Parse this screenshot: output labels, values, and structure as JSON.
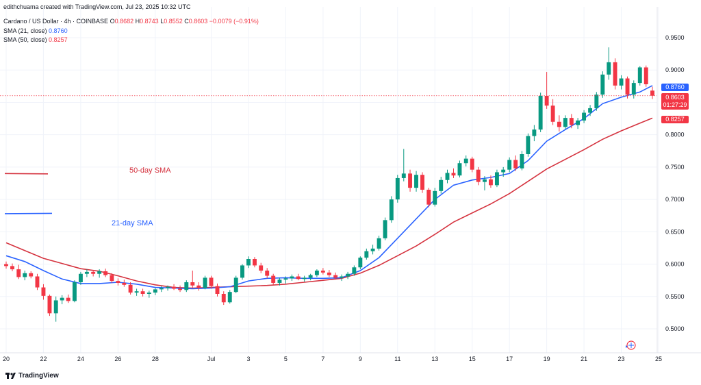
{
  "header": {
    "credit": "edithchuama created with TradingView.com, Jul 23, 2025 10:32 UTC",
    "symbol": "Cardano / US Dollar · 4h · COINBASE",
    "o_label": "O",
    "o": "0.8682",
    "h_label": "H",
    "h": "0.8743",
    "l_label": "L",
    "l": "0.8552",
    "c_label": "C",
    "c": "0.8603",
    "change": "−0.0079 (−0.91%)",
    "sma21_label": "SMA (21, close)",
    "sma21_value": "0.8760",
    "sma50_label": "SMA (50, close)",
    "sma50_value": "0.8257"
  },
  "badges": {
    "sma21": "0.8760",
    "price": "0.8603",
    "countdown": "01:27:29",
    "sma50": "0.8257"
  },
  "annotations": {
    "sma50_legend": "50-day SMA",
    "sma21_legend": "21-day SMA"
  },
  "footer": {
    "brand": "TradingView"
  },
  "colors": {
    "up": "#089981",
    "down": "#f23645",
    "sma21": "#2962ff",
    "sma50": "#d5333f",
    "grid": "#f0f3fa"
  },
  "chart_data": {
    "type": "candlestick",
    "title": "Cardano / US Dollar · 4h · COINBASE",
    "ylim": [
      0.47,
      0.97
    ],
    "y_ticks": [
      "0.9500",
      "0.9000",
      "0.8500",
      "0.8000",
      "0.7500",
      "0.7000",
      "0.6500",
      "0.6000",
      "0.5500",
      "0.5000"
    ],
    "x_ticks": [
      "20",
      "22",
      "24",
      "26",
      "28",
      "Jul",
      "3",
      "5",
      "7",
      "9",
      "11",
      "13",
      "15",
      "17",
      "19",
      "21",
      "23",
      "25"
    ],
    "x_tick_days": [
      0,
      2,
      4,
      6,
      8,
      11,
      13,
      15,
      17,
      19,
      21,
      23,
      25,
      27,
      29,
      31,
      33,
      35
    ],
    "last_price": 0.8603,
    "sma21_last": 0.876,
    "sma50_last": 0.8257,
    "candles": [
      {
        "d": 0.0,
        "o": 0.6,
        "h": 0.604,
        "l": 0.593,
        "c": 0.597
      },
      {
        "d": 0.33,
        "o": 0.597,
        "h": 0.601,
        "l": 0.589,
        "c": 0.592
      },
      {
        "d": 0.67,
        "o": 0.592,
        "h": 0.599,
        "l": 0.577,
        "c": 0.58
      },
      {
        "d": 1.0,
        "o": 0.58,
        "h": 0.59,
        "l": 0.575,
        "c": 0.586
      },
      {
        "d": 1.33,
        "o": 0.586,
        "h": 0.589,
        "l": 0.578,
        "c": 0.581
      },
      {
        "d": 1.67,
        "o": 0.581,
        "h": 0.585,
        "l": 0.56,
        "c": 0.564
      },
      {
        "d": 2.0,
        "o": 0.564,
        "h": 0.569,
        "l": 0.545,
        "c": 0.551
      },
      {
        "d": 2.33,
        "o": 0.551,
        "h": 0.553,
        "l": 0.52,
        "c": 0.524
      },
      {
        "d": 2.67,
        "o": 0.524,
        "h": 0.55,
        "l": 0.511,
        "c": 0.544
      },
      {
        "d": 3.0,
        "o": 0.544,
        "h": 0.552,
        "l": 0.538,
        "c": 0.548
      },
      {
        "d": 3.33,
        "o": 0.548,
        "h": 0.553,
        "l": 0.54,
        "c": 0.543
      },
      {
        "d": 3.67,
        "o": 0.543,
        "h": 0.575,
        "l": 0.541,
        "c": 0.572
      },
      {
        "d": 4.0,
        "o": 0.572,
        "h": 0.588,
        "l": 0.568,
        "c": 0.585
      },
      {
        "d": 4.33,
        "o": 0.585,
        "h": 0.592,
        "l": 0.58,
        "c": 0.588
      },
      {
        "d": 4.67,
        "o": 0.588,
        "h": 0.591,
        "l": 0.581,
        "c": 0.585
      },
      {
        "d": 5.0,
        "o": 0.585,
        "h": 0.592,
        "l": 0.579,
        "c": 0.589
      },
      {
        "d": 5.33,
        "o": 0.589,
        "h": 0.593,
        "l": 0.58,
        "c": 0.583
      },
      {
        "d": 5.67,
        "o": 0.583,
        "h": 0.586,
        "l": 0.571,
        "c": 0.574
      },
      {
        "d": 6.0,
        "o": 0.574,
        "h": 0.578,
        "l": 0.567,
        "c": 0.571
      },
      {
        "d": 6.33,
        "o": 0.571,
        "h": 0.576,
        "l": 0.565,
        "c": 0.568
      },
      {
        "d": 6.67,
        "o": 0.568,
        "h": 0.572,
        "l": 0.553,
        "c": 0.556
      },
      {
        "d": 7.0,
        "o": 0.556,
        "h": 0.562,
        "l": 0.551,
        "c": 0.558
      },
      {
        "d": 7.33,
        "o": 0.558,
        "h": 0.562,
        "l": 0.55,
        "c": 0.554
      },
      {
        "d": 7.67,
        "o": 0.554,
        "h": 0.559,
        "l": 0.548,
        "c": 0.556
      },
      {
        "d": 8.0,
        "o": 0.556,
        "h": 0.563,
        "l": 0.552,
        "c": 0.561
      },
      {
        "d": 8.33,
        "o": 0.561,
        "h": 0.566,
        "l": 0.557,
        "c": 0.563
      },
      {
        "d": 8.67,
        "o": 0.563,
        "h": 0.567,
        "l": 0.559,
        "c": 0.565
      },
      {
        "d": 9.0,
        "o": 0.565,
        "h": 0.569,
        "l": 0.56,
        "c": 0.562
      },
      {
        "d": 9.33,
        "o": 0.562,
        "h": 0.567,
        "l": 0.557,
        "c": 0.56
      },
      {
        "d": 9.67,
        "o": 0.56,
        "h": 0.575,
        "l": 0.557,
        "c": 0.572
      },
      {
        "d": 10.0,
        "o": 0.572,
        "h": 0.59,
        "l": 0.563,
        "c": 0.567
      },
      {
        "d": 10.33,
        "o": 0.567,
        "h": 0.572,
        "l": 0.559,
        "c": 0.563
      },
      {
        "d": 10.67,
        "o": 0.563,
        "h": 0.582,
        "l": 0.561,
        "c": 0.579
      },
      {
        "d": 11.0,
        "o": 0.579,
        "h": 0.582,
        "l": 0.562,
        "c": 0.566
      },
      {
        "d": 11.33,
        "o": 0.566,
        "h": 0.57,
        "l": 0.55,
        "c": 0.554
      },
      {
        "d": 11.67,
        "o": 0.554,
        "h": 0.558,
        "l": 0.537,
        "c": 0.541
      },
      {
        "d": 12.0,
        "o": 0.541,
        "h": 0.56,
        "l": 0.539,
        "c": 0.557
      },
      {
        "d": 12.33,
        "o": 0.557,
        "h": 0.582,
        "l": 0.555,
        "c": 0.579
      },
      {
        "d": 12.67,
        "o": 0.579,
        "h": 0.6,
        "l": 0.576,
        "c": 0.598
      },
      {
        "d": 13.0,
        "o": 0.598,
        "h": 0.612,
        "l": 0.594,
        "c": 0.608
      },
      {
        "d": 13.33,
        "o": 0.608,
        "h": 0.611,
        "l": 0.595,
        "c": 0.598
      },
      {
        "d": 13.67,
        "o": 0.598,
        "h": 0.602,
        "l": 0.586,
        "c": 0.59
      },
      {
        "d": 14.0,
        "o": 0.59,
        "h": 0.594,
        "l": 0.578,
        "c": 0.582
      },
      {
        "d": 14.33,
        "o": 0.582,
        "h": 0.585,
        "l": 0.568,
        "c": 0.571
      },
      {
        "d": 14.67,
        "o": 0.571,
        "h": 0.579,
        "l": 0.567,
        "c": 0.576
      },
      {
        "d": 15.0,
        "o": 0.576,
        "h": 0.581,
        "l": 0.57,
        "c": 0.578
      },
      {
        "d": 15.33,
        "o": 0.578,
        "h": 0.584,
        "l": 0.574,
        "c": 0.581
      },
      {
        "d": 15.67,
        "o": 0.581,
        "h": 0.585,
        "l": 0.575,
        "c": 0.577
      },
      {
        "d": 16.0,
        "o": 0.577,
        "h": 0.582,
        "l": 0.573,
        "c": 0.579
      },
      {
        "d": 16.33,
        "o": 0.579,
        "h": 0.585,
        "l": 0.575,
        "c": 0.583
      },
      {
        "d": 16.67,
        "o": 0.583,
        "h": 0.592,
        "l": 0.58,
        "c": 0.59
      },
      {
        "d": 17.0,
        "o": 0.59,
        "h": 0.594,
        "l": 0.584,
        "c": 0.587
      },
      {
        "d": 17.33,
        "o": 0.587,
        "h": 0.591,
        "l": 0.58,
        "c": 0.583
      },
      {
        "d": 17.67,
        "o": 0.583,
        "h": 0.587,
        "l": 0.576,
        "c": 0.579
      },
      {
        "d": 18.0,
        "o": 0.579,
        "h": 0.584,
        "l": 0.574,
        "c": 0.581
      },
      {
        "d": 18.33,
        "o": 0.581,
        "h": 0.588,
        "l": 0.577,
        "c": 0.585
      },
      {
        "d": 18.67,
        "o": 0.585,
        "h": 0.598,
        "l": 0.582,
        "c": 0.595
      },
      {
        "d": 19.0,
        "o": 0.595,
        "h": 0.612,
        "l": 0.592,
        "c": 0.61
      },
      {
        "d": 19.33,
        "o": 0.61,
        "h": 0.624,
        "l": 0.607,
        "c": 0.62
      },
      {
        "d": 19.67,
        "o": 0.62,
        "h": 0.63,
        "l": 0.615,
        "c": 0.624
      },
      {
        "d": 20.0,
        "o": 0.624,
        "h": 0.644,
        "l": 0.621,
        "c": 0.64
      },
      {
        "d": 20.33,
        "o": 0.64,
        "h": 0.672,
        "l": 0.637,
        "c": 0.668
      },
      {
        "d": 20.67,
        "o": 0.668,
        "h": 0.705,
        "l": 0.664,
        "c": 0.7
      },
      {
        "d": 21.0,
        "o": 0.7,
        "h": 0.738,
        "l": 0.695,
        "c": 0.733
      },
      {
        "d": 21.33,
        "o": 0.733,
        "h": 0.778,
        "l": 0.728,
        "c": 0.74
      },
      {
        "d": 21.67,
        "o": 0.74,
        "h": 0.746,
        "l": 0.712,
        "c": 0.718
      },
      {
        "d": 22.0,
        "o": 0.718,
        "h": 0.744,
        "l": 0.712,
        "c": 0.738
      },
      {
        "d": 22.33,
        "o": 0.738,
        "h": 0.742,
        "l": 0.71,
        "c": 0.715
      },
      {
        "d": 22.67,
        "o": 0.715,
        "h": 0.718,
        "l": 0.688,
        "c": 0.692
      },
      {
        "d": 23.0,
        "o": 0.692,
        "h": 0.718,
        "l": 0.689,
        "c": 0.713
      },
      {
        "d": 23.33,
        "o": 0.713,
        "h": 0.735,
        "l": 0.709,
        "c": 0.73
      },
      {
        "d": 23.67,
        "o": 0.73,
        "h": 0.746,
        "l": 0.725,
        "c": 0.741
      },
      {
        "d": 24.0,
        "o": 0.741,
        "h": 0.748,
        "l": 0.733,
        "c": 0.737
      },
      {
        "d": 24.33,
        "o": 0.737,
        "h": 0.76,
        "l": 0.734,
        "c": 0.756
      },
      {
        "d": 24.67,
        "o": 0.756,
        "h": 0.768,
        "l": 0.751,
        "c": 0.763
      },
      {
        "d": 25.0,
        "o": 0.763,
        "h": 0.766,
        "l": 0.742,
        "c": 0.746
      },
      {
        "d": 25.33,
        "o": 0.746,
        "h": 0.75,
        "l": 0.722,
        "c": 0.727
      },
      {
        "d": 25.67,
        "o": 0.727,
        "h": 0.736,
        "l": 0.714,
        "c": 0.731
      },
      {
        "d": 26.0,
        "o": 0.731,
        "h": 0.737,
        "l": 0.718,
        "c": 0.722
      },
      {
        "d": 26.33,
        "o": 0.722,
        "h": 0.746,
        "l": 0.719,
        "c": 0.742
      },
      {
        "d": 26.67,
        "o": 0.742,
        "h": 0.75,
        "l": 0.735,
        "c": 0.746
      },
      {
        "d": 27.0,
        "o": 0.746,
        "h": 0.765,
        "l": 0.742,
        "c": 0.761
      },
      {
        "d": 27.33,
        "o": 0.761,
        "h": 0.768,
        "l": 0.744,
        "c": 0.748
      },
      {
        "d": 27.67,
        "o": 0.748,
        "h": 0.775,
        "l": 0.745,
        "c": 0.77
      },
      {
        "d": 28.0,
        "o": 0.77,
        "h": 0.802,
        "l": 0.766,
        "c": 0.798
      },
      {
        "d": 28.33,
        "o": 0.798,
        "h": 0.815,
        "l": 0.79,
        "c": 0.808
      },
      {
        "d": 28.67,
        "o": 0.808,
        "h": 0.865,
        "l": 0.804,
        "c": 0.86
      },
      {
        "d": 29.0,
        "o": 0.86,
        "h": 0.897,
        "l": 0.84,
        "c": 0.845
      },
      {
        "d": 29.33,
        "o": 0.845,
        "h": 0.855,
        "l": 0.815,
        "c": 0.82
      },
      {
        "d": 29.67,
        "o": 0.82,
        "h": 0.83,
        "l": 0.805,
        "c": 0.812
      },
      {
        "d": 30.0,
        "o": 0.812,
        "h": 0.83,
        "l": 0.808,
        "c": 0.826
      },
      {
        "d": 30.33,
        "o": 0.826,
        "h": 0.832,
        "l": 0.81,
        "c": 0.815
      },
      {
        "d": 30.67,
        "o": 0.815,
        "h": 0.826,
        "l": 0.809,
        "c": 0.822
      },
      {
        "d": 31.0,
        "o": 0.822,
        "h": 0.838,
        "l": 0.818,
        "c": 0.834
      },
      {
        "d": 31.33,
        "o": 0.834,
        "h": 0.846,
        "l": 0.829,
        "c": 0.841
      },
      {
        "d": 31.67,
        "o": 0.841,
        "h": 0.866,
        "l": 0.837,
        "c": 0.862
      },
      {
        "d": 32.0,
        "o": 0.862,
        "h": 0.898,
        "l": 0.857,
        "c": 0.893
      },
      {
        "d": 32.33,
        "o": 0.893,
        "h": 0.935,
        "l": 0.885,
        "c": 0.912
      },
      {
        "d": 32.67,
        "o": 0.912,
        "h": 0.918,
        "l": 0.87,
        "c": 0.876
      },
      {
        "d": 33.0,
        "o": 0.876,
        "h": 0.892,
        "l": 0.87,
        "c": 0.887
      },
      {
        "d": 33.33,
        "o": 0.887,
        "h": 0.89,
        "l": 0.856,
        "c": 0.862
      },
      {
        "d": 33.67,
        "o": 0.862,
        "h": 0.884,
        "l": 0.856,
        "c": 0.88
      },
      {
        "d": 34.0,
        "o": 0.88,
        "h": 0.906,
        "l": 0.876,
        "c": 0.904
      },
      {
        "d": 34.33,
        "o": 0.904,
        "h": 0.907,
        "l": 0.874,
        "c": 0.878
      },
      {
        "d": 34.67,
        "o": 0.8682,
        "h": 0.8743,
        "l": 0.8552,
        "c": 0.8603
      }
    ],
    "sma21": [
      [
        0,
        0.613
      ],
      [
        1,
        0.604
      ],
      [
        2,
        0.59
      ],
      [
        3,
        0.577
      ],
      [
        4,
        0.57
      ],
      [
        5,
        0.57
      ],
      [
        6,
        0.572
      ],
      [
        7,
        0.569
      ],
      [
        8,
        0.564
      ],
      [
        9,
        0.563
      ],
      [
        10,
        0.562
      ],
      [
        11,
        0.563
      ],
      [
        12,
        0.565
      ],
      [
        13,
        0.574
      ],
      [
        14,
        0.578
      ],
      [
        15,
        0.579
      ],
      [
        16,
        0.578
      ],
      [
        17,
        0.578
      ],
      [
        18,
        0.579
      ],
      [
        19,
        0.59
      ],
      [
        20,
        0.61
      ],
      [
        21,
        0.64
      ],
      [
        22,
        0.67
      ],
      [
        23,
        0.7
      ],
      [
        24,
        0.722
      ],
      [
        25,
        0.73
      ],
      [
        26,
        0.734
      ],
      [
        27,
        0.74
      ],
      [
        28,
        0.76
      ],
      [
        29,
        0.79
      ],
      [
        30,
        0.808
      ],
      [
        31,
        0.825
      ],
      [
        32,
        0.848
      ],
      [
        33,
        0.858
      ],
      [
        34,
        0.866
      ],
      [
        34.67,
        0.876
      ]
    ],
    "sma50": [
      [
        0,
        0.633
      ],
      [
        1,
        0.621
      ],
      [
        2,
        0.609
      ],
      [
        3,
        0.601
      ],
      [
        4,
        0.593
      ],
      [
        5,
        0.589
      ],
      [
        6,
        0.582
      ],
      [
        7,
        0.574
      ],
      [
        8,
        0.568
      ],
      [
        9,
        0.564
      ],
      [
        10,
        0.563
      ],
      [
        11,
        0.564
      ],
      [
        12,
        0.565
      ],
      [
        13,
        0.566
      ],
      [
        14,
        0.567
      ],
      [
        15,
        0.569
      ],
      [
        16,
        0.572
      ],
      [
        17,
        0.575
      ],
      [
        18,
        0.578
      ],
      [
        19,
        0.586
      ],
      [
        20,
        0.598
      ],
      [
        21,
        0.613
      ],
      [
        22,
        0.628
      ],
      [
        23,
        0.646
      ],
      [
        24,
        0.665
      ],
      [
        25,
        0.679
      ],
      [
        26,
        0.693
      ],
      [
        27,
        0.709
      ],
      [
        28,
        0.728
      ],
      [
        29,
        0.747
      ],
      [
        30,
        0.762
      ],
      [
        31,
        0.777
      ],
      [
        32,
        0.793
      ],
      [
        33,
        0.806
      ],
      [
        34,
        0.818
      ],
      [
        34.67,
        0.8257
      ]
    ],
    "legend_line_sma50": [
      0.74,
      0.7395
    ],
    "legend_line_sma21": [
      0.678,
      0.6785
    ]
  }
}
